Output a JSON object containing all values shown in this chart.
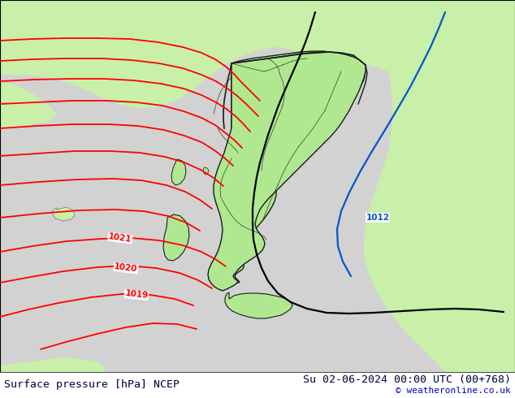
{
  "title_left": "Surface pressure [hPa] NCEP",
  "title_right": "Su 02-06-2024 00:00 UTC (00+768)",
  "credit": "© weatheronline.co.uk",
  "bg_land_light": "#c8f0a8",
  "bg_sea": "#d2d2d2",
  "bg_land_green": "#b0e890",
  "contour_red": "#ff0000",
  "contour_black": "#000000",
  "contour_blue": "#0055cc",
  "border_country": "#1a1a1a",
  "border_region": "#707070",
  "text_dark": "#00003a",
  "text_blue": "#0000cc",
  "title_fontsize": 9.5,
  "credit_fontsize": 8.0,
  "label_fontsize": 7.5,
  "figsize": [
    6.34,
    4.9
  ],
  "dpi": 100,
  "isobar_lw": 1.3,
  "isobar_lw_thick": 1.6
}
